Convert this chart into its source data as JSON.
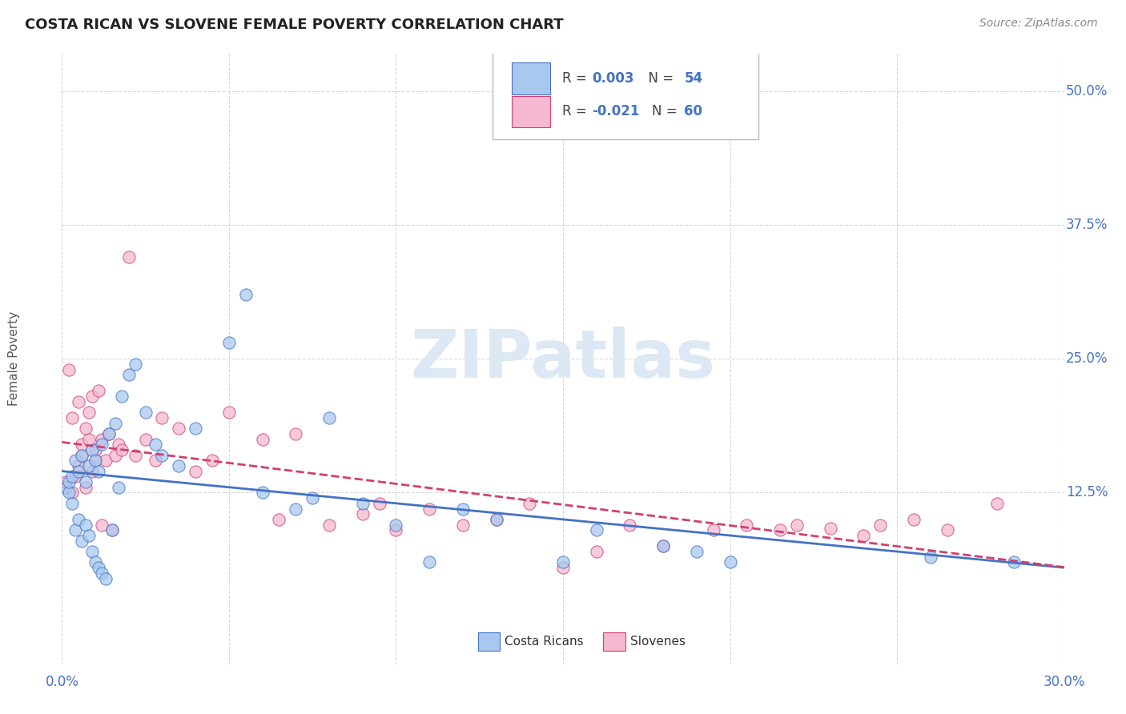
{
  "title": "COSTA RICAN VS SLOVENE FEMALE POVERTY CORRELATION CHART",
  "source": "Source: ZipAtlas.com",
  "ylabel": "Female Poverty",
  "xlim": [
    0.0,
    0.3
  ],
  "ylim": [
    -0.035,
    0.535
  ],
  "background_color": "#ffffff",
  "grid_color": "#d8d8d8",
  "legend_R1": "R =  0.003",
  "legend_N1": "N = 54",
  "legend_R2": "R = -0.021",
  "legend_N2": "N = 60",
  "color_blue": "#a8c8f0",
  "color_pink": "#f5b8d0",
  "line_blue": "#4472c4",
  "line_pink": "#d04070",
  "text_blue": "#4472c4",
  "watermark_color": "#dde8f5",
  "costa_ricans_x": [
    0.001,
    0.002,
    0.002,
    0.003,
    0.003,
    0.004,
    0.004,
    0.005,
    0.005,
    0.006,
    0.006,
    0.007,
    0.007,
    0.008,
    0.008,
    0.009,
    0.009,
    0.01,
    0.01,
    0.011,
    0.011,
    0.012,
    0.012,
    0.013,
    0.014,
    0.015,
    0.016,
    0.017,
    0.018,
    0.02,
    0.022,
    0.025,
    0.028,
    0.03,
    0.035,
    0.04,
    0.05,
    0.055,
    0.06,
    0.07,
    0.075,
    0.08,
    0.09,
    0.1,
    0.11,
    0.12,
    0.13,
    0.15,
    0.16,
    0.18,
    0.19,
    0.2,
    0.26,
    0.285
  ],
  "costa_ricans_y": [
    0.13,
    0.125,
    0.135,
    0.115,
    0.14,
    0.09,
    0.155,
    0.1,
    0.145,
    0.08,
    0.16,
    0.095,
    0.135,
    0.085,
    0.15,
    0.07,
    0.165,
    0.06,
    0.155,
    0.055,
    0.145,
    0.05,
    0.17,
    0.045,
    0.18,
    0.09,
    0.19,
    0.13,
    0.215,
    0.235,
    0.245,
    0.2,
    0.17,
    0.16,
    0.15,
    0.185,
    0.265,
    0.31,
    0.125,
    0.11,
    0.12,
    0.195,
    0.115,
    0.095,
    0.06,
    0.11,
    0.1,
    0.06,
    0.09,
    0.075,
    0.07,
    0.06,
    0.065,
    0.06
  ],
  "slovenes_x": [
    0.001,
    0.002,
    0.003,
    0.003,
    0.004,
    0.005,
    0.005,
    0.006,
    0.006,
    0.007,
    0.007,
    0.008,
    0.008,
    0.009,
    0.009,
    0.01,
    0.01,
    0.011,
    0.012,
    0.012,
    0.013,
    0.014,
    0.015,
    0.016,
    0.017,
    0.018,
    0.02,
    0.022,
    0.025,
    0.028,
    0.03,
    0.035,
    0.04,
    0.045,
    0.05,
    0.06,
    0.065,
    0.07,
    0.08,
    0.09,
    0.095,
    0.1,
    0.11,
    0.12,
    0.13,
    0.14,
    0.15,
    0.16,
    0.17,
    0.18,
    0.195,
    0.205,
    0.215,
    0.22,
    0.23,
    0.24,
    0.245,
    0.255,
    0.265,
    0.28
  ],
  "slovenes_y": [
    0.135,
    0.24,
    0.125,
    0.195,
    0.14,
    0.15,
    0.21,
    0.16,
    0.17,
    0.13,
    0.185,
    0.175,
    0.2,
    0.145,
    0.215,
    0.155,
    0.165,
    0.22,
    0.095,
    0.175,
    0.155,
    0.18,
    0.09,
    0.16,
    0.17,
    0.165,
    0.345,
    0.16,
    0.175,
    0.155,
    0.195,
    0.185,
    0.145,
    0.155,
    0.2,
    0.175,
    0.1,
    0.18,
    0.095,
    0.105,
    0.115,
    0.09,
    0.11,
    0.095,
    0.1,
    0.115,
    0.055,
    0.07,
    0.095,
    0.075,
    0.09,
    0.095,
    0.09,
    0.095,
    0.092,
    0.085,
    0.095,
    0.1,
    0.09,
    0.115
  ],
  "yticks": [
    0.0,
    0.125,
    0.25,
    0.375,
    0.5
  ],
  "ytick_labels": [
    "",
    "12.5%",
    "25.0%",
    "37.5%",
    "50.0%"
  ],
  "x_ticks_pos": [
    0.0,
    0.05,
    0.1,
    0.15,
    0.2,
    0.25,
    0.3
  ]
}
